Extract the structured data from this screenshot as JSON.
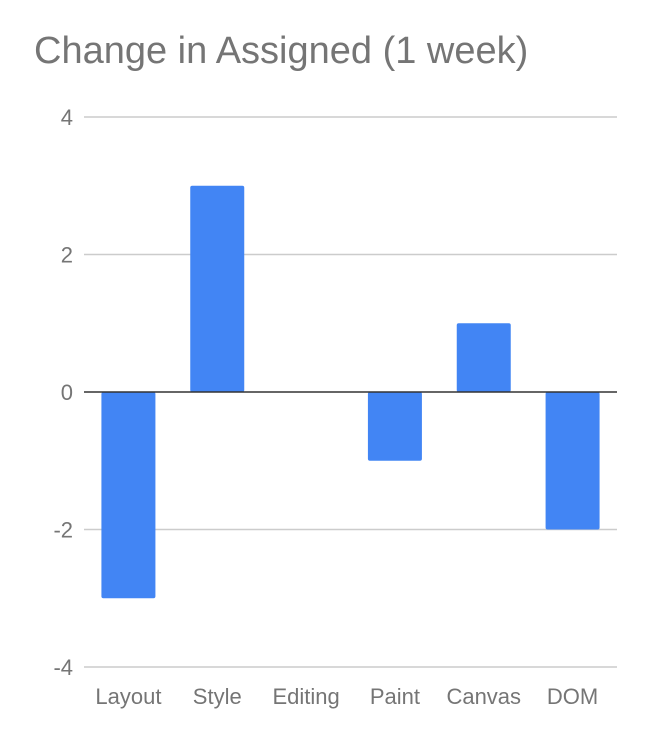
{
  "chart_data": {
    "type": "bar",
    "title": "Change in Assigned (1 week)",
    "xlabel": "",
    "ylabel": "",
    "categories": [
      "Layout",
      "Style",
      "Editing",
      "Paint",
      "Canvas",
      "DOM"
    ],
    "values": [
      -3,
      3,
      0,
      -1,
      1,
      -2
    ],
    "ylim": [
      -4,
      4
    ],
    "yticks": [
      4,
      2,
      0,
      -2,
      -4
    ],
    "ytick_labels": [
      "4",
      "2",
      "0",
      "-2",
      "-4"
    ],
    "grid": true,
    "legend": "none",
    "colors": {
      "bar": "#4285f4",
      "grid": "#cccccc",
      "zero_line": "#333333",
      "text": "#757575"
    }
  }
}
